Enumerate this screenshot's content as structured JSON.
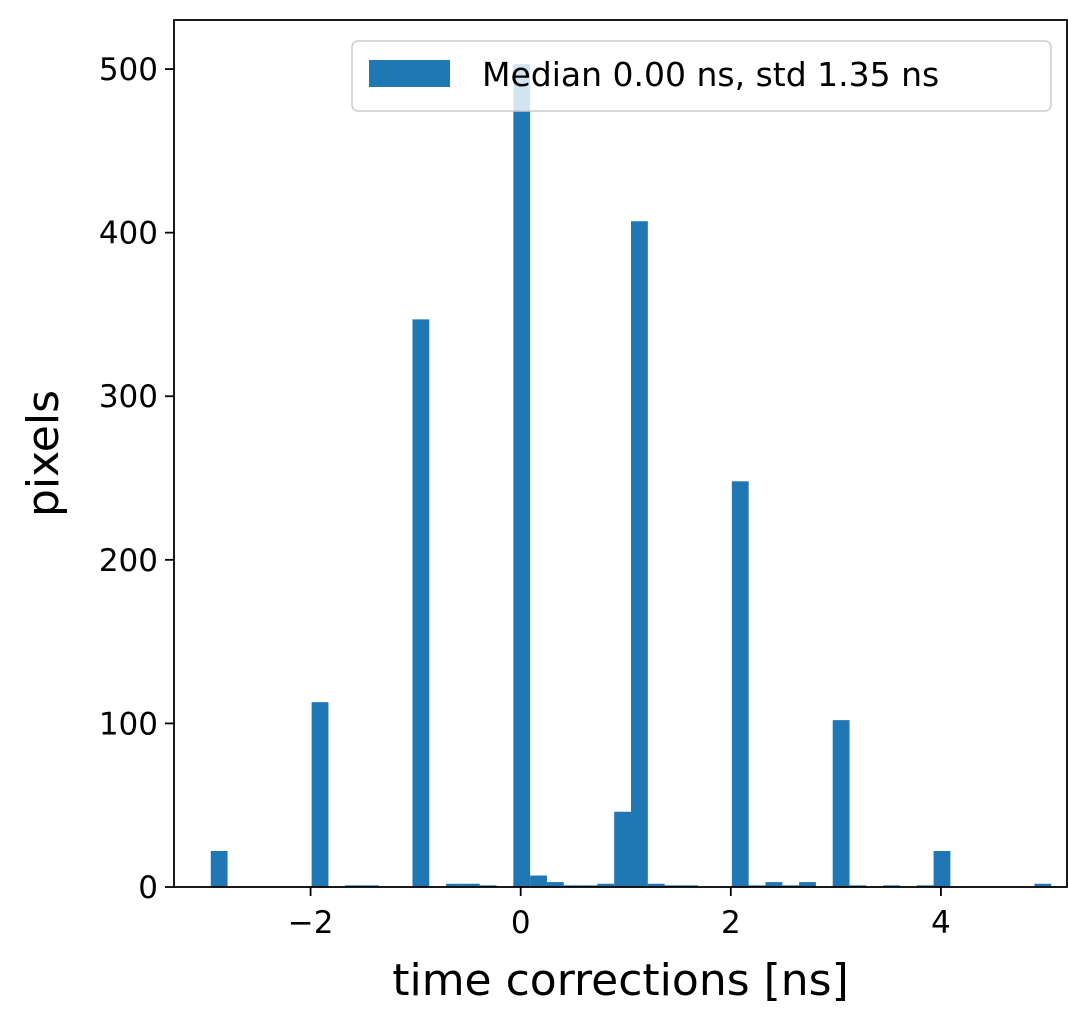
{
  "chart_data": {
    "type": "bar",
    "xlabel": "time corrections [ns]",
    "ylabel": "pixels",
    "xlim": [
      -3.3,
      5.2
    ],
    "ylim": [
      0,
      530
    ],
    "x_ticks": [
      {
        "value": -2,
        "label": "−2"
      },
      {
        "value": 0,
        "label": "0"
      },
      {
        "value": 2,
        "label": "2"
      },
      {
        "value": 4,
        "label": "4"
      }
    ],
    "y_ticks": [
      {
        "value": 0,
        "label": "0"
      },
      {
        "value": 100,
        "label": "100"
      },
      {
        "value": 200,
        "label": "200"
      },
      {
        "value": 300,
        "label": "300"
      },
      {
        "value": 400,
        "label": "400"
      },
      {
        "value": 500,
        "label": "500"
      }
    ],
    "bar_color": "#1f77b4",
    "grid": false,
    "legend": {
      "placement": "top-right",
      "entries": [
        "Median 0.00 ns, std 1.35 ns"
      ]
    },
    "bins": [
      {
        "x0": -2.95,
        "x1": -2.79,
        "count": 22
      },
      {
        "x0": -1.99,
        "x1": -1.83,
        "count": 113
      },
      {
        "x0": -1.67,
        "x1": -1.51,
        "count": 1
      },
      {
        "x0": -1.51,
        "x1": -1.35,
        "count": 1
      },
      {
        "x0": -1.03,
        "x1": -0.87,
        "count": 347
      },
      {
        "x0": -0.71,
        "x1": -0.55,
        "count": 2
      },
      {
        "x0": -0.55,
        "x1": -0.39,
        "count": 2
      },
      {
        "x0": -0.39,
        "x1": -0.23,
        "count": 1
      },
      {
        "x0": -0.07,
        "x1": 0.09,
        "count": 503
      },
      {
        "x0": 0.09,
        "x1": 0.25,
        "count": 7
      },
      {
        "x0": 0.25,
        "x1": 0.41,
        "count": 3
      },
      {
        "x0": 0.41,
        "x1": 0.57,
        "count": 1
      },
      {
        "x0": 0.57,
        "x1": 0.73,
        "count": 1
      },
      {
        "x0": 0.73,
        "x1": 0.89,
        "count": 2
      },
      {
        "x0": 0.89,
        "x1": 1.05,
        "count": 46
      },
      {
        "x0": 1.05,
        "x1": 1.21,
        "count": 407
      },
      {
        "x0": 1.21,
        "x1": 1.37,
        "count": 2
      },
      {
        "x0": 1.37,
        "x1": 1.53,
        "count": 1
      },
      {
        "x0": 1.53,
        "x1": 1.69,
        "count": 1
      },
      {
        "x0": 2.01,
        "x1": 2.17,
        "count": 248
      },
      {
        "x0": 2.17,
        "x1": 2.33,
        "count": 1
      },
      {
        "x0": 2.33,
        "x1": 2.49,
        "count": 3
      },
      {
        "x0": 2.49,
        "x1": 2.65,
        "count": 1
      },
      {
        "x0": 2.65,
        "x1": 2.81,
        "count": 3
      },
      {
        "x0": 2.97,
        "x1": 3.13,
        "count": 102
      },
      {
        "x0": 3.13,
        "x1": 3.29,
        "count": 1
      },
      {
        "x0": 3.45,
        "x1": 3.61,
        "count": 1
      },
      {
        "x0": 3.77,
        "x1": 3.93,
        "count": 1
      },
      {
        "x0": 3.93,
        "x1": 4.09,
        "count": 22
      },
      {
        "x0": 4.89,
        "x1": 5.05,
        "count": 2
      }
    ]
  }
}
